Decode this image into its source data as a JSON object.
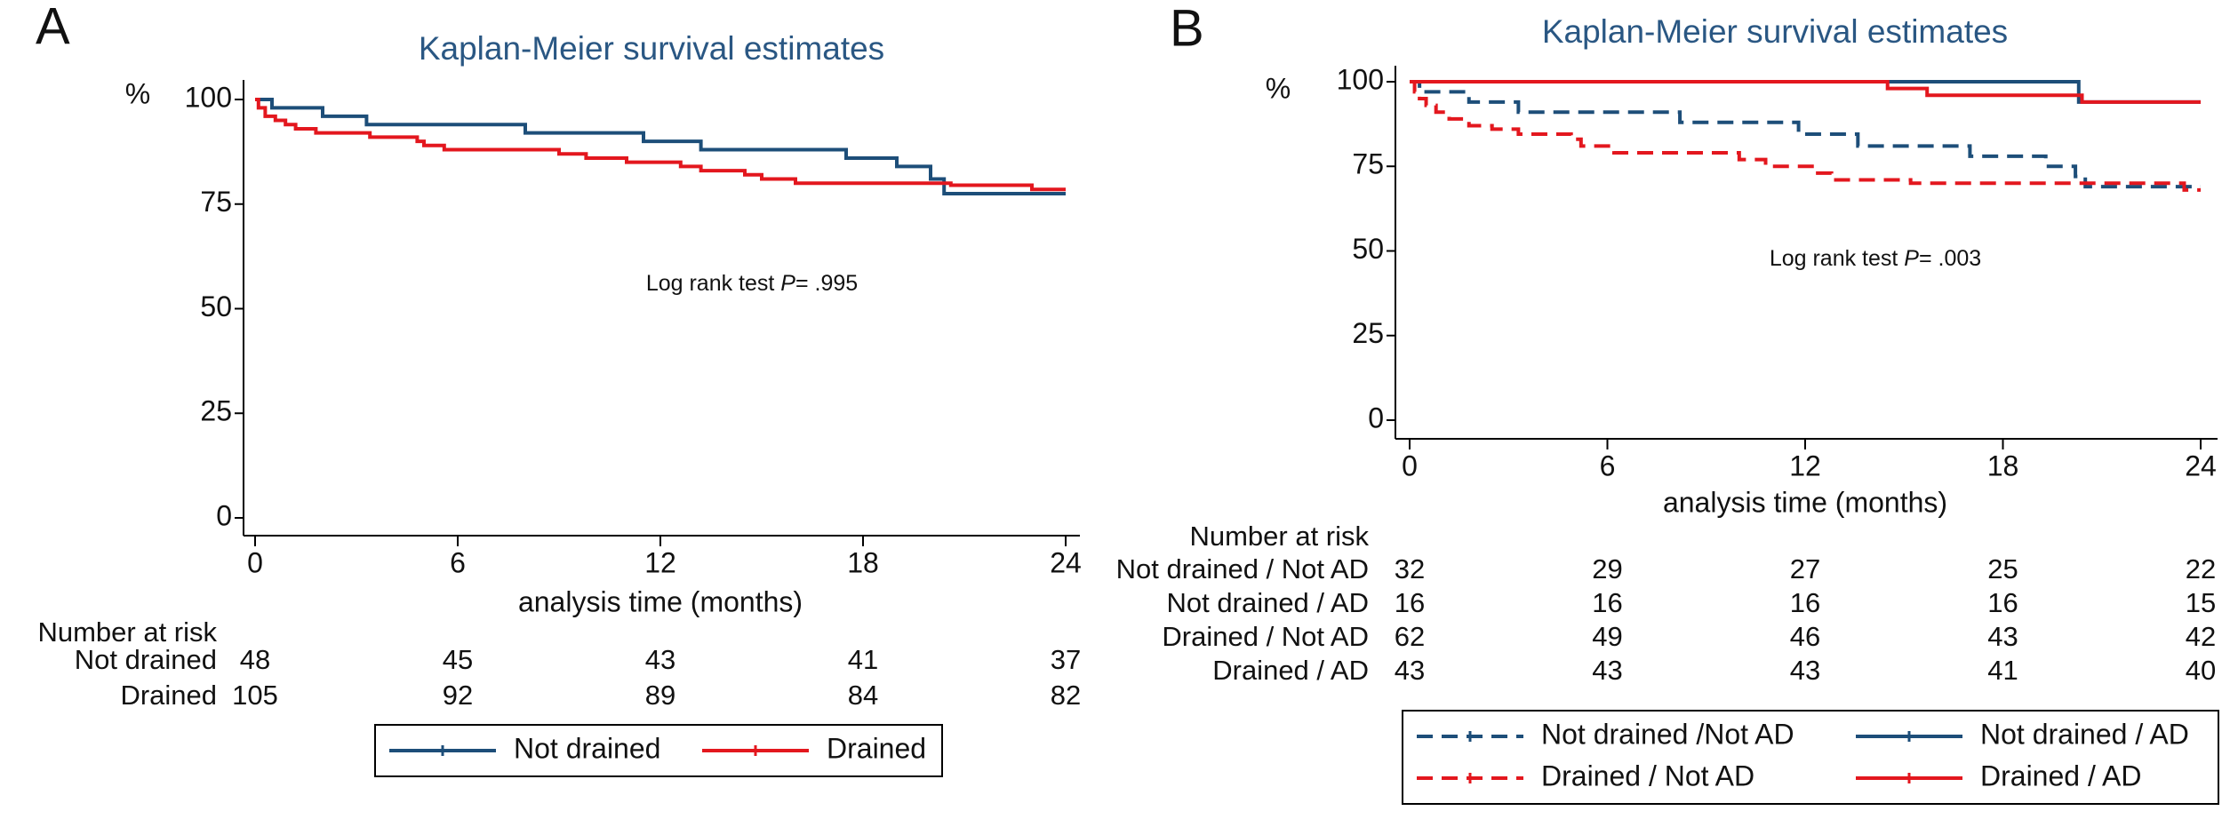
{
  "chart_data": [
    {
      "type": "step",
      "panel_label": "A",
      "title": "Kaplan-Meier survival estimates",
      "y_label": "%",
      "x_label": "analysis time (months)",
      "annotation": [
        "Log rank test ",
        "P",
        "= .995"
      ],
      "xlim": [
        0,
        24
      ],
      "xticks": [
        0,
        6,
        12,
        18,
        24
      ],
      "ylim": [
        0,
        100
      ],
      "yticks": [
        0,
        25,
        50,
        75,
        100
      ],
      "series": [
        {
          "name": "Not drained",
          "color": "#1d4e79",
          "line_style": "solid",
          "x": [
            0,
            0.5,
            2,
            3.3,
            8,
            11.5,
            13.2,
            17.5,
            19,
            20,
            20.4,
            24
          ],
          "values": [
            100,
            98,
            96,
            94,
            92,
            90,
            88,
            86,
            84,
            81,
            77.5,
            77.5
          ]
        },
        {
          "name": "Drained",
          "color": "#e3171e",
          "line_style": "solid",
          "x": [
            0,
            0.1,
            0.3,
            0.6,
            0.9,
            1.2,
            1.8,
            3.4,
            4.8,
            5,
            5.6,
            9,
            9.8,
            11,
            12.6,
            13.2,
            14.5,
            15,
            16,
            20.6,
            23,
            24
          ],
          "values": [
            100,
            98,
            96,
            95,
            94,
            93,
            92,
            91,
            90,
            89,
            88,
            87,
            86,
            85,
            84,
            83,
            82,
            81,
            80,
            79.5,
            78.5,
            78.5
          ]
        }
      ],
      "risk_table": {
        "title": "Number at risk",
        "rows": [
          {
            "label": "Not drained",
            "values": [
              48,
              45,
              43,
              41,
              37
            ]
          },
          {
            "label": "Drained",
            "values": [
              105,
              92,
              89,
              84,
              82
            ]
          }
        ]
      }
    },
    {
      "type": "step",
      "panel_label": "B",
      "title": "Kaplan-Meier survival estimates",
      "y_label": "%",
      "x_label": "analysis time (months)",
      "annotation": [
        "Log rank test ",
        "P",
        "= .003"
      ],
      "xlim": [
        0,
        24
      ],
      "xticks": [
        0,
        6,
        12,
        18,
        24
      ],
      "ylim": [
        0,
        100
      ],
      "yticks": [
        0,
        25,
        50,
        75,
        100
      ],
      "series": [
        {
          "name": "Not drained /Not AD",
          "color": "#1d4e79",
          "line_style": "dashed",
          "x": [
            0,
            0.3,
            1.8,
            3.3,
            8.2,
            11.8,
            13.6,
            17,
            19.3,
            20.2,
            20.5,
            24
          ],
          "values": [
            100,
            97,
            94,
            91,
            88,
            84.5,
            81,
            78,
            75,
            72,
            69,
            69
          ]
        },
        {
          "name": "Not drained / AD",
          "color": "#1d4e79",
          "line_style": "solid",
          "x": [
            0,
            20.3,
            24
          ],
          "values": [
            100,
            94,
            94
          ]
        },
        {
          "name": "Drained / Not AD",
          "color": "#e3171e",
          "line_style": "dashed",
          "x": [
            0,
            0.15,
            0.3,
            0.5,
            0.8,
            1.2,
            1.8,
            2.5,
            3.3,
            4.9,
            5.2,
            6.2,
            10,
            10.8,
            12.3,
            12.8,
            15.2,
            23.5,
            24
          ],
          "values": [
            100,
            97,
            95,
            93,
            91,
            89,
            87,
            86,
            84.5,
            83,
            81,
            79,
            77,
            75,
            73,
            71,
            70,
            68,
            68
          ]
        },
        {
          "name": "Drained / AD",
          "color": "#e3171e",
          "line_style": "solid",
          "x": [
            0,
            14.5,
            15.7,
            20.4,
            24
          ],
          "values": [
            100,
            98,
            96,
            94,
            94
          ]
        }
      ],
      "risk_table": {
        "title": "Number at risk",
        "rows": [
          {
            "label": "Not drained / Not AD",
            "values": [
              32,
              29,
              27,
              25,
              22
            ]
          },
          {
            "label": "Not drained / AD",
            "values": [
              16,
              16,
              16,
              16,
              15
            ]
          },
          {
            "label": "Drained / Not AD",
            "values": [
              62,
              49,
              46,
              43,
              42
            ]
          },
          {
            "label": "Drained / AD",
            "values": [
              43,
              43,
              43,
              41,
              40
            ]
          }
        ]
      }
    }
  ]
}
